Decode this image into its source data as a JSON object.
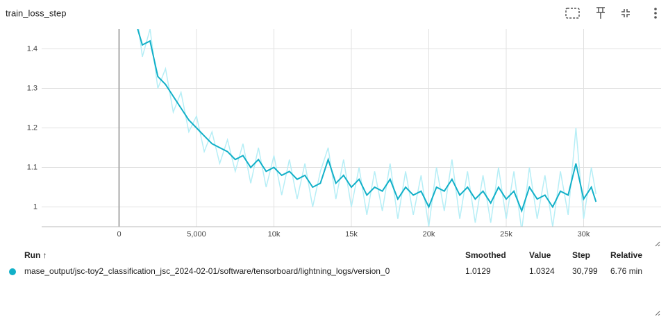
{
  "header": {
    "title": "train_loss_step"
  },
  "chart_data": {
    "type": "line",
    "x": [
      1200,
      1500,
      2000,
      2500,
      3000,
      3500,
      4000,
      4500,
      5000,
      5500,
      6000,
      6500,
      7000,
      7500,
      8000,
      8500,
      9000,
      9500,
      10000,
      10500,
      11000,
      11500,
      12000,
      12500,
      13000,
      13500,
      14000,
      14500,
      15000,
      15500,
      16000,
      16500,
      17000,
      17500,
      18000,
      18500,
      19000,
      19500,
      20000,
      20500,
      21000,
      21500,
      22000,
      22500,
      23000,
      23500,
      24000,
      24500,
      25000,
      25500,
      26000,
      26500,
      27000,
      27500,
      28000,
      28500,
      29000,
      29500,
      30000,
      30500,
      30799
    ],
    "series": [
      {
        "color": "#b6eef6",
        "values": [
          1.47,
          1.38,
          1.45,
          1.3,
          1.35,
          1.24,
          1.29,
          1.19,
          1.23,
          1.14,
          1.19,
          1.11,
          1.17,
          1.09,
          1.16,
          1.06,
          1.15,
          1.05,
          1.13,
          1.03,
          1.12,
          1.02,
          1.11,
          1.0,
          1.09,
          1.15,
          1.02,
          1.12,
          1.0,
          1.1,
          0.98,
          1.09,
          0.99,
          1.11,
          0.97,
          1.09,
          0.98,
          1.08,
          0.95,
          1.1,
          0.99,
          1.12,
          0.97,
          1.09,
          0.96,
          1.08,
          0.96,
          1.1,
          0.97,
          1.09,
          0.94,
          1.1,
          0.97,
          1.08,
          0.95,
          1.09,
          0.98,
          1.2,
          0.97,
          1.1,
          1.0324
        ]
      },
      {
        "color": "#12b0c8",
        "values": [
          1.45,
          1.41,
          1.42,
          1.33,
          1.31,
          1.28,
          1.25,
          1.22,
          1.2,
          1.18,
          1.16,
          1.15,
          1.14,
          1.12,
          1.13,
          1.1,
          1.12,
          1.09,
          1.1,
          1.08,
          1.09,
          1.07,
          1.08,
          1.05,
          1.06,
          1.12,
          1.06,
          1.08,
          1.05,
          1.07,
          1.03,
          1.05,
          1.04,
          1.07,
          1.02,
          1.05,
          1.03,
          1.04,
          1.0,
          1.05,
          1.04,
          1.07,
          1.03,
          1.05,
          1.02,
          1.04,
          1.01,
          1.05,
          1.02,
          1.04,
          0.99,
          1.05,
          1.02,
          1.03,
          1.0,
          1.04,
          1.03,
          1.11,
          1.02,
          1.05,
          1.0129
        ]
      }
    ],
    "xlim": [
      -5000,
      35000
    ],
    "xticks": [
      0,
      {
        "value": 5000,
        "label": "5,000"
      },
      {
        "value": 10000,
        "label": "10k"
      },
      {
        "value": 15000,
        "label": "15k"
      },
      {
        "value": 20000,
        "label": "20k"
      },
      {
        "value": 25000,
        "label": "25k"
      },
      {
        "value": 30000,
        "label": "30k"
      }
    ],
    "ylim": [
      0.95,
      1.45
    ],
    "yticks": [
      1,
      1.1,
      1.2,
      1.3,
      1.4
    ],
    "grid": true
  },
  "table": {
    "columns": [
      "Run ↑",
      "Smoothed",
      "Value",
      "Step",
      "Relative"
    ],
    "rows": [
      [
        "mase_output/jsc-toy2_classification_jsc_2024-02-01/software/tensorboard/lightning_logs/version_0",
        "1.0129",
        "1.0324",
        "30,799",
        "6.76 min"
      ]
    ],
    "run_color": "#12b0c8"
  }
}
